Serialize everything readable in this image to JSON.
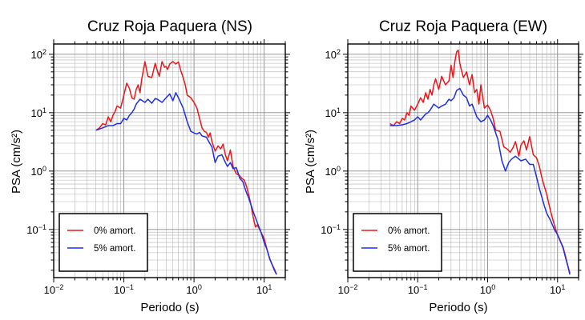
{
  "chart_data": [
    {
      "type": "line",
      "title": "Cruz Roja Paquera (NS)",
      "xlabel": "Periodo (s)",
      "ylabel": "PSA (cm/s²)",
      "xscale": "log",
      "yscale": "log",
      "xlim": [
        0.01,
        20
      ],
      "ylim": [
        0.015,
        150
      ],
      "grid": true,
      "legend_position": "bottom-left",
      "x_ticks": [
        {
          "base": "10",
          "exp": "−2"
        },
        {
          "base": "10",
          "exp": "−1"
        },
        {
          "base": "10",
          "exp": "0"
        },
        {
          "base": "10",
          "exp": "1"
        }
      ],
      "y_ticks": [
        {
          "base": "10",
          "exp": "−1"
        },
        {
          "base": "10",
          "exp": "0"
        },
        {
          "base": "10",
          "exp": "1"
        },
        {
          "base": "10",
          "exp": "2"
        }
      ],
      "series": [
        {
          "name": "0% amort.",
          "color": "#e8171b",
          "x": [
            0.04,
            0.045,
            0.05,
            0.055,
            0.06,
            0.065,
            0.07,
            0.075,
            0.08,
            0.09,
            0.1,
            0.11,
            0.12,
            0.13,
            0.14,
            0.15,
            0.16,
            0.17,
            0.18,
            0.2,
            0.22,
            0.25,
            0.28,
            0.3,
            0.32,
            0.35,
            0.38,
            0.4,
            0.42,
            0.45,
            0.5,
            0.55,
            0.6,
            0.65,
            0.7,
            0.75,
            0.8,
            0.9,
            1.0,
            1.1,
            1.2,
            1.3,
            1.4,
            1.5,
            1.6,
            1.7,
            1.8,
            2.0,
            2.2,
            2.4,
            2.6,
            2.8,
            3.0,
            3.3,
            3.6,
            4.0,
            4.4,
            4.8,
            5.2,
            5.6,
            6.0,
            6.5,
            7.0,
            7.5,
            8.0,
            9.0,
            10.0,
            11.0,
            12.0,
            13.0,
            14.0,
            15.0
          ],
          "y": [
            5.0,
            5.5,
            6.5,
            6.2,
            8.5,
            7.0,
            9.0,
            10.5,
            13.0,
            12.0,
            20.0,
            32.0,
            26.0,
            18.0,
            17.0,
            25.0,
            30.0,
            22.0,
            38.0,
            75.0,
            42.0,
            40.0,
            70.0,
            52.0,
            42.0,
            75.0,
            60.0,
            62.0,
            55.0,
            68.0,
            75.0,
            68.0,
            74.0,
            52.0,
            40.0,
            30.0,
            20.0,
            18.0,
            15.0,
            12.0,
            8.0,
            5.5,
            4.8,
            4.6,
            3.8,
            4.5,
            3.2,
            2.2,
            2.7,
            2.4,
            2.9,
            1.9,
            1.5,
            2.3,
            1.2,
            0.9,
            0.85,
            0.75,
            0.7,
            0.55,
            0.4,
            0.26,
            0.16,
            0.11,
            0.12,
            0.09,
            0.07,
            0.045,
            0.032,
            0.025,
            0.021,
            0.017
          ]
        },
        {
          "name": "5% amort.",
          "color": "#1e2fe0",
          "x": [
            0.04,
            0.05,
            0.06,
            0.07,
            0.08,
            0.09,
            0.1,
            0.11,
            0.12,
            0.13,
            0.14,
            0.15,
            0.17,
            0.2,
            0.22,
            0.25,
            0.28,
            0.3,
            0.35,
            0.4,
            0.45,
            0.5,
            0.55,
            0.6,
            0.7,
            0.8,
            0.9,
            1.0,
            1.1,
            1.2,
            1.3,
            1.5,
            1.7,
            1.8,
            2.0,
            2.2,
            2.5,
            2.8,
            3.0,
            3.3,
            3.6,
            4.0,
            4.5,
            5.0,
            5.5,
            6.0,
            7.0,
            8.0,
            9.0,
            10.0,
            11.0,
            12.0,
            13.0,
            14.0,
            15.0
          ],
          "y": [
            5.0,
            5.5,
            6.0,
            6.0,
            6.5,
            6.5,
            8.0,
            7.5,
            9.0,
            10.0,
            11.5,
            14.0,
            17.0,
            15.0,
            17.0,
            14.5,
            17.5,
            17.0,
            15.0,
            18.0,
            21.0,
            16.0,
            22.0,
            18.0,
            12.0,
            7.0,
            4.8,
            4.5,
            4.3,
            4.6,
            4.0,
            3.8,
            2.9,
            2.6,
            1.4,
            1.8,
            1.9,
            1.4,
            1.2,
            1.4,
            1.1,
            1.15,
            0.75,
            0.65,
            0.45,
            0.35,
            0.2,
            0.13,
            0.09,
            0.06,
            0.045,
            0.031,
            0.025,
            0.02,
            0.017
          ]
        }
      ]
    },
    {
      "type": "line",
      "title": "Cruz Roja Paquera (EW)",
      "xlabel": "Periodo (s)",
      "ylabel": "PSA (cm/s²)",
      "xscale": "log",
      "yscale": "log",
      "xlim": [
        0.01,
        20
      ],
      "ylim": [
        0.015,
        150
      ],
      "grid": true,
      "legend_position": "bottom-left",
      "x_ticks": [
        {
          "base": "10",
          "exp": "−2"
        },
        {
          "base": "10",
          "exp": "−1"
        },
        {
          "base": "10",
          "exp": "0"
        },
        {
          "base": "10",
          "exp": "1"
        }
      ],
      "y_ticks": [
        {
          "base": "10",
          "exp": "−1"
        },
        {
          "base": "10",
          "exp": "0"
        },
        {
          "base": "10",
          "exp": "1"
        },
        {
          "base": "10",
          "exp": "2"
        }
      ],
      "series": [
        {
          "name": "0% amort.",
          "color": "#e8171b",
          "x": [
            0.04,
            0.045,
            0.05,
            0.055,
            0.06,
            0.065,
            0.07,
            0.075,
            0.08,
            0.09,
            0.1,
            0.11,
            0.12,
            0.13,
            0.14,
            0.15,
            0.16,
            0.17,
            0.18,
            0.2,
            0.22,
            0.25,
            0.28,
            0.3,
            0.32,
            0.34,
            0.36,
            0.38,
            0.4,
            0.42,
            0.45,
            0.5,
            0.55,
            0.6,
            0.65,
            0.7,
            0.75,
            0.8,
            0.9,
            1.0,
            1.1,
            1.2,
            1.3,
            1.5,
            1.7,
            1.9,
            2.1,
            2.3,
            2.5,
            2.8,
            3.0,
            3.3,
            3.6,
            4.0,
            4.5,
            5.0,
            5.5,
            6.0,
            7.0,
            8.0,
            9.0,
            10.0,
            11.0,
            12.0,
            13.0,
            14.0,
            15.0
          ],
          "y": [
            6.5,
            6.0,
            7.0,
            6.5,
            8.0,
            7.5,
            10.0,
            9.0,
            13.0,
            11.0,
            14.0,
            18.0,
            15.0,
            22.0,
            17.0,
            25.0,
            20.0,
            30.0,
            38.0,
            25.0,
            42.0,
            30.0,
            35.0,
            65.0,
            40.0,
            75.0,
            110.0,
            118.0,
            70.0,
            55.0,
            40.0,
            50.0,
            30.0,
            45.0,
            22.0,
            25.0,
            14.0,
            30.0,
            12.0,
            13.5,
            11.0,
            8.0,
            5.0,
            4.8,
            2.6,
            2.4,
            2.1,
            2.5,
            3.2,
            1.8,
            2.8,
            3.3,
            2.3,
            3.9,
            1.9,
            1.7,
            1.2,
            0.75,
            0.4,
            0.2,
            0.12,
            0.08,
            0.062,
            0.05,
            0.035,
            0.024,
            0.018
          ]
        },
        {
          "name": "5% amort.",
          "color": "#1e2fe0",
          "x": [
            0.04,
            0.05,
            0.06,
            0.07,
            0.08,
            0.09,
            0.1,
            0.11,
            0.12,
            0.13,
            0.14,
            0.15,
            0.17,
            0.2,
            0.22,
            0.25,
            0.28,
            0.3,
            0.33,
            0.36,
            0.4,
            0.45,
            0.5,
            0.55,
            0.6,
            0.7,
            0.8,
            0.9,
            1.0,
            1.1,
            1.2,
            1.4,
            1.6,
            1.8,
            2.0,
            2.2,
            2.5,
            3.0,
            3.5,
            4.0,
            4.5,
            5.0,
            5.5,
            6.0,
            6.5,
            7.0,
            8.0,
            9.0,
            10.0,
            11.0,
            12.0,
            13.0,
            14.0,
            15.0
          ],
          "y": [
            6.0,
            6.0,
            6.2,
            6.5,
            7.0,
            7.5,
            8.5,
            7.5,
            8.5,
            9.5,
            10.0,
            11.0,
            14.0,
            12.0,
            13.0,
            14.0,
            17.0,
            16.0,
            18.0,
            24.0,
            26.0,
            20.0,
            18.0,
            13.0,
            14.0,
            8.5,
            7.0,
            7.5,
            9.0,
            7.5,
            6.0,
            3.5,
            1.5,
            1.0,
            1.4,
            1.6,
            1.8,
            1.5,
            1.6,
            1.3,
            1.3,
            0.8,
            0.5,
            0.35,
            0.25,
            0.19,
            0.14,
            0.1,
            0.082,
            0.063,
            0.048,
            0.033,
            0.024,
            0.017
          ]
        }
      ]
    }
  ]
}
